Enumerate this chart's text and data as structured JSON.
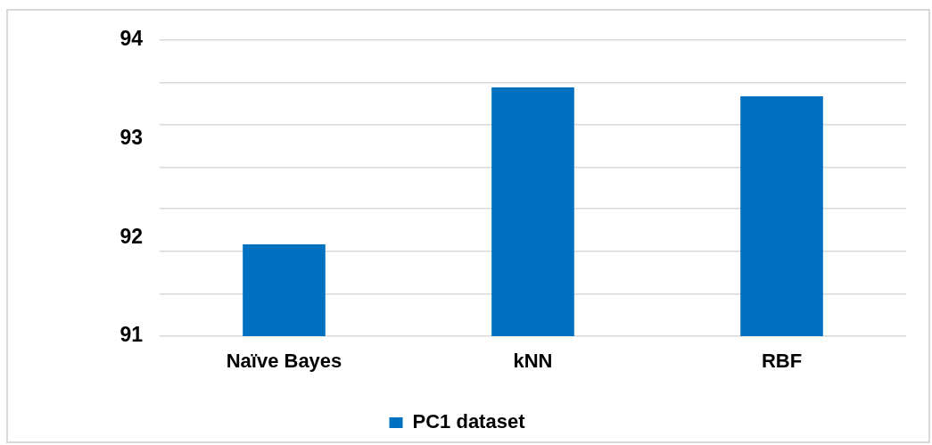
{
  "chart_data": {
    "type": "bar",
    "categories": [
      "Naïve Bayes",
      "kNN",
      "RBF"
    ],
    "series": [
      {
        "name": "PC1 dataset",
        "color": "#0070c0",
        "values": [
          91.93,
          93.52,
          93.43
        ]
      }
    ],
    "ylim": [
      91,
      94
    ],
    "yticks": [
      91,
      {
        "value": 91.43,
        "label": null
      },
      {
        "value": 91.86,
        "label": null
      },
      92,
      {
        "value": 92.29,
        "label": null
      },
      {
        "value": 92.71,
        "label": null
      },
      93,
      {
        "value": 93.14,
        "label": null
      },
      {
        "value": 93.57,
        "label": null
      },
      94
    ],
    "grid": "y",
    "legend": "bottom"
  }
}
